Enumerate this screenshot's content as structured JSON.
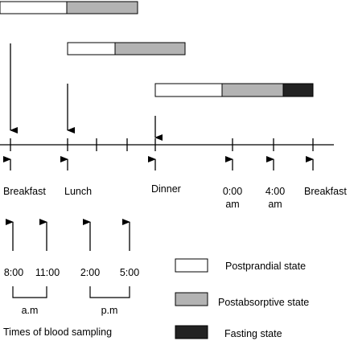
{
  "meals": {
    "breakfast": "Breakfast",
    "lunch": "Lunch",
    "dinner": "Dinner",
    "breakfast_next": "Breakfast"
  },
  "night_times": {
    "midnight_time": "0:00",
    "midnight_period": "am",
    "four_time": "4:00",
    "four_period": "am"
  },
  "sampling": {
    "times": [
      "8:00",
      "11:00",
      "2:00",
      "5:00"
    ],
    "am_label": "a.m",
    "pm_label": "p.m",
    "caption": "Times of blood sampling"
  },
  "legend": {
    "postprandial": "Postprandial state",
    "postabsorptive": "Postabsorptive state",
    "fasting": "Fasting state"
  },
  "colors": {
    "postprandial": "#ffffff",
    "postabsorptive": "#b3b3b3",
    "fasting": "#222222",
    "line": "#000000"
  }
}
